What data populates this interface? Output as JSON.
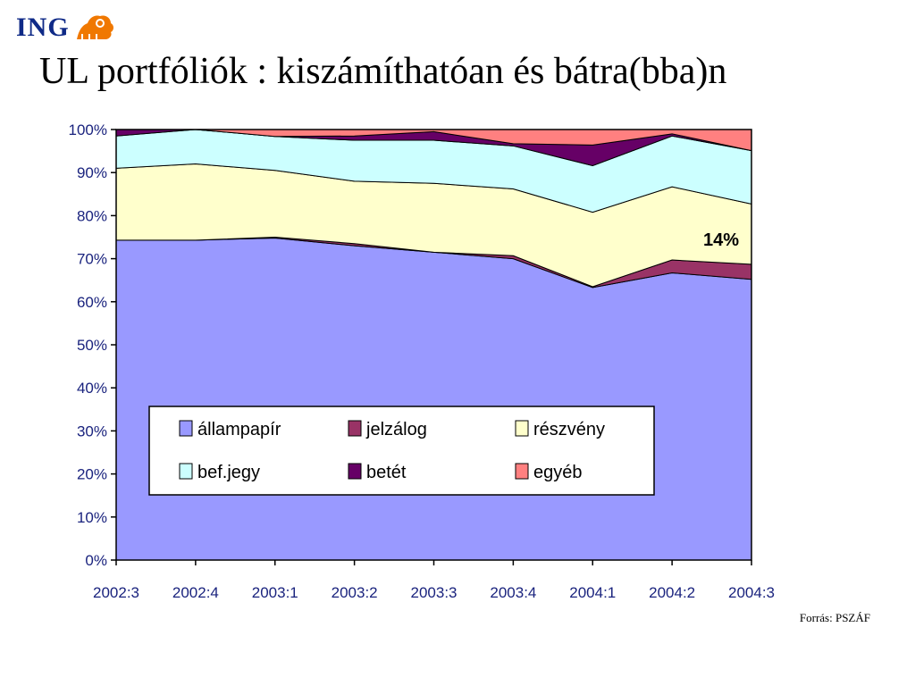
{
  "logo": {
    "text": "ING"
  },
  "title": "UL portfóliók : kiszámíthatóan és bátra(bba)n",
  "source": "Forrás: PSZÁF",
  "colors": {
    "allampapir": "#9999ff",
    "jelzalog": "#993366",
    "reszveny": "#ffffcc",
    "befjegy": "#ccffff",
    "betet": "#660066",
    "egyeb": "#ff8080",
    "axis_text": "#1a237e",
    "logo_blue": "#0f2a87",
    "logo_orange": "#f07800"
  },
  "chart_data": {
    "type": "area",
    "stacked": true,
    "percent": true,
    "categories": [
      "2002:3",
      "2002:4",
      "2003:1",
      "2003:2",
      "2003:3",
      "2003:4",
      "2004:1",
      "2004:2",
      "2004:3"
    ],
    "ylim": [
      0,
      100
    ],
    "yticks": [
      "0%",
      "10%",
      "20%",
      "30%",
      "40%",
      "50%",
      "60%",
      "70%",
      "80%",
      "90%",
      "100%"
    ],
    "series": [
      {
        "name": "állampapír",
        "key": "allampapir",
        "values": [
          74.3,
          74.3,
          74.8,
          73.0,
          71.5,
          70.0,
          63.3,
          66.7,
          65.2
        ]
      },
      {
        "name": "jelzálog",
        "key": "jelzalog",
        "values": [
          0.0,
          0.0,
          0.2,
          0.5,
          0.0,
          0.7,
          0.2,
          3.0,
          3.5
        ]
      },
      {
        "name": "részvény",
        "key": "reszveny",
        "values": [
          16.7,
          17.7,
          15.5,
          14.5,
          16.0,
          15.5,
          17.3,
          17.0,
          14.0
        ]
      },
      {
        "name": "bef.jegy",
        "key": "befjegy",
        "values": [
          7.5,
          8.0,
          7.9,
          9.5,
          10.0,
          10.0,
          10.8,
          11.8,
          12.4
        ]
      },
      {
        "name": "betét",
        "key": "betet",
        "values": [
          1.5,
          0.0,
          0.0,
          1.0,
          2.0,
          0.5,
          4.8,
          0.5,
          0.0
        ]
      },
      {
        "name": "egyéb",
        "key": "egyeb",
        "values": [
          0.0,
          0.0,
          1.6,
          1.5,
          0.5,
          3.3,
          3.6,
          1.0,
          4.9
        ]
      }
    ],
    "annotations": [
      {
        "text": "14%",
        "category": "2004:3",
        "y": 74.5
      }
    ],
    "legend_position": "inside-bottom-center",
    "grid": false
  }
}
